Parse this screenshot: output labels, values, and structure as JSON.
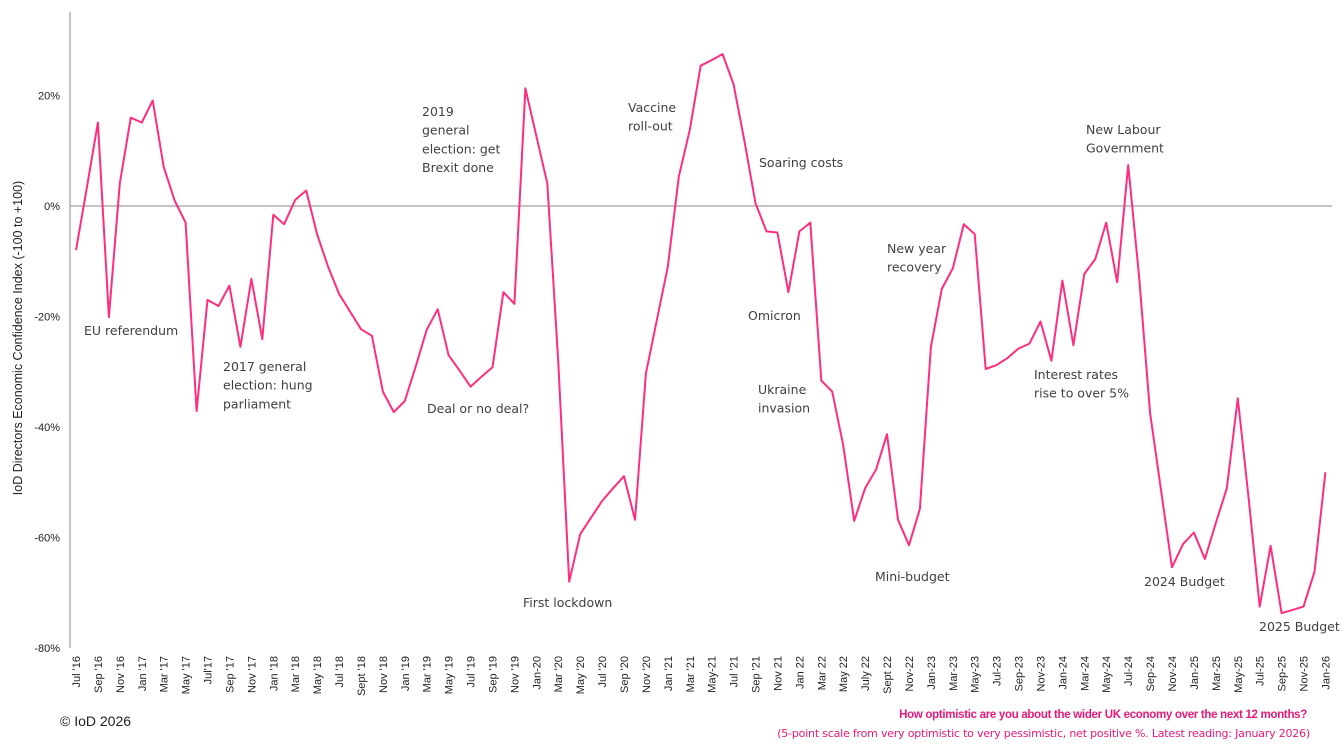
{
  "chart_data": {
    "type": "line",
    "ylabel": "IoD Directors Economic Confidence Index (-100 to +100)",
    "ylim": [
      -80,
      35
    ],
    "y_ticks": [
      "20%",
      "0%",
      "-20%",
      "-40%",
      "-60%",
      "-80%"
    ],
    "y_tick_values": [
      20,
      0,
      -20,
      -40,
      -60,
      -80
    ],
    "grid": "zero line only",
    "x_frequency": "monthly",
    "x_ticks": [
      "Jul '16",
      "Sep '16",
      "Nov '16",
      "Jan '17",
      "Mar '17",
      "May '17",
      "Jul'17",
      "Sep '17",
      "Nov '17",
      "Jan '18",
      "Mar '18",
      "May '18",
      "Jul '18",
      "Sept '18",
      "Nov '18",
      "Jan '19",
      "Mar '19",
      "May '19",
      "Jul '19",
      "Sep '19",
      "Nov '19",
      "Jan-20",
      "Mar '20",
      "May '20",
      "Jul '20",
      "Sep '20",
      "Nov '20",
      "Jan '21",
      "Mar '21",
      "May-21",
      "Jul '21",
      "Sep '21",
      "Nov 21",
      "Jan 22",
      "Mar 22",
      "May 22",
      "July 22",
      "Sept 22",
      "Nov-22",
      "Jan-23",
      "Mar-23",
      "May-23",
      "Jul-23",
      "Sep-23",
      "Nov-23",
      "Jan-24",
      "Mar-24",
      "May-24",
      "Jul-24",
      "Sep-24",
      "Nov-24",
      "Jan-25",
      "Mar-25",
      "May-25",
      "Jul-25",
      "Sep-25",
      "Nov-25",
      "Jan-26"
    ],
    "series": [
      {
        "color": "#FF2D7E",
        "values": [
          -8.0,
          3.5,
          15.1,
          -20.1,
          4.1,
          16.0,
          15.1,
          19.1,
          7.1,
          1.0,
          -3.0,
          -37.1,
          -17.0,
          -18.1,
          -14.4,
          -25.5,
          -13.2,
          -24.1,
          -1.6,
          -3.3,
          1.1,
          2.8,
          -5.1,
          -11.0,
          -15.9,
          -19.1,
          -22.3,
          -23.5,
          -33.6,
          -37.3,
          -35.3,
          -29.0,
          -22.4,
          -18.7,
          -27.0,
          -29.8,
          -32.7,
          -30.9,
          -29.2,
          -15.6,
          -17.7,
          21.3,
          12.7,
          4.1,
          -28.0,
          -68.0,
          -59.4,
          -56.4,
          -53.4,
          -51.1,
          -48.9,
          -56.8,
          -30.3,
          -20.6,
          -11.0,
          5.3,
          13.8,
          25.4,
          26.4,
          27.5,
          22.0,
          11.6,
          0.5,
          -4.6,
          -4.8,
          -15.6,
          -4.6,
          -3.0,
          -31.6,
          -33.6,
          -43.3,
          -57.0,
          -51.1,
          -47.7,
          -41.3,
          -56.8,
          -61.4,
          -54.8,
          -25.5,
          -15.0,
          -11.3,
          -3.3,
          -5.1,
          -29.5,
          -28.8,
          -27.5,
          -25.8,
          -24.9,
          -20.9,
          -28.0,
          -13.5,
          -25.2,
          -12.3,
          -9.6,
          -3.0,
          -13.8,
          7.4,
          -12.8,
          -37.5,
          -51.4,
          -65.4,
          -61.2,
          -59.1,
          -63.9,
          -57.4,
          -51.1,
          -34.8,
          -53.0,
          -72.5,
          -61.5,
          -73.7,
          -73.1,
          -72.5,
          -66.2,
          -48.2
        ]
      }
    ],
    "annotations": [
      {
        "lines": [
          "EU referendum"
        ]
      },
      {
        "lines": [
          "2017 general",
          "election: hung",
          "parliament"
        ]
      },
      {
        "lines": [
          "2019",
          "general",
          "election: get",
          "Brexit done"
        ]
      },
      {
        "lines": [
          "Deal or no deal?"
        ]
      },
      {
        "lines": [
          "First lockdown"
        ]
      },
      {
        "lines": [
          "Vaccine",
          "roll-out"
        ]
      },
      {
        "lines": [
          "Soaring costs"
        ]
      },
      {
        "lines": [
          "Omicron"
        ]
      },
      {
        "lines": [
          "Ukraine",
          "invasion"
        ]
      },
      {
        "lines": [
          "New year",
          "recovery"
        ]
      },
      {
        "lines": [
          "Mini-budget"
        ]
      },
      {
        "lines": [
          "New Labour",
          "Government"
        ]
      },
      {
        "lines": [
          "Interest rates",
          "rise to over 5%"
        ]
      },
      {
        "lines": [
          "2024 Budget"
        ]
      },
      {
        "lines": [
          "2025 Budget"
        ]
      }
    ]
  },
  "footer": {
    "copyright": "© IoD 2026",
    "question": "How optimistic are you about the wider UK economy over the next 12 months?",
    "note": "(5-point scale from very optimistic to very pessimistic, net positive %. Latest reading: January 2026)"
  }
}
